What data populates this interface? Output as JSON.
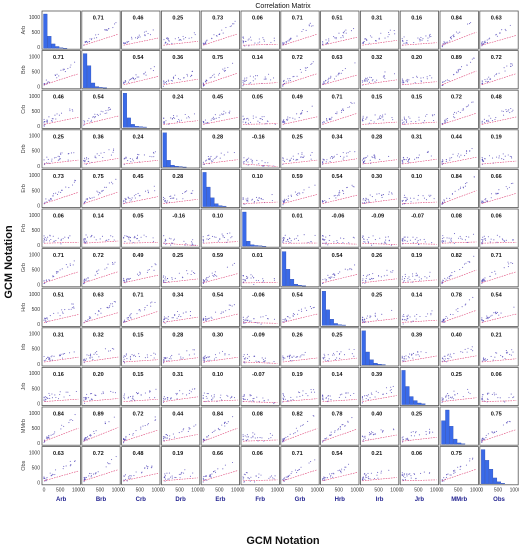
{
  "chart_data": {
    "type": "scatter-matrix",
    "title": "Correlation Matrix",
    "xlabel": "GCM Notation",
    "ylabel": "GCM Notation",
    "variables": [
      "Arb",
      "Brb",
      "Crb",
      "Drb",
      "Erb",
      "Frb",
      "Grb",
      "Hrb",
      "Irb",
      "Jrb",
      "MMrb",
      "Obs"
    ],
    "correlation_matrix": [
      [
        null,
        "0.71",
        "0.46",
        "0.25",
        "0.73",
        "0.06",
        "0.71",
        "0.51",
        "0.31",
        "0.16",
        "0.84",
        "0.63"
      ],
      [
        "0.71",
        null,
        "0.54",
        "0.36",
        "0.75",
        "0.14",
        "0.72",
        "0.63",
        "0.32",
        "0.20",
        "0.89",
        "0.72"
      ],
      [
        "0.46",
        "0.54",
        null,
        "0.24",
        "0.45",
        "0.05",
        "0.49",
        "0.71",
        "0.15",
        "0.15",
        "0.72",
        "0.48"
      ],
      [
        "0.25",
        "0.36",
        "0.24",
        null,
        "0.28",
        "-0.16",
        "0.25",
        "0.34",
        "0.28",
        "0.31",
        "0.44",
        "0.19"
      ],
      [
        "0.73",
        "0.75",
        "0.45",
        "0.28",
        null,
        "0.10",
        "0.59",
        "0.54",
        "0.30",
        "0.10",
        "0.84",
        "0.66"
      ],
      [
        "0.06",
        "0.14",
        "0.05",
        "-0.16",
        "0.10",
        null,
        "0.01",
        "-0.06",
        "-0.09",
        "-0.07",
        "0.08",
        "0.06"
      ],
      [
        "0.71",
        "0.72",
        "0.49",
        "0.25",
        "0.59",
        "0.01",
        null,
        "0.54",
        "0.26",
        "0.19",
        "0.82",
        "0.71"
      ],
      [
        "0.51",
        "0.63",
        "0.71",
        "0.34",
        "0.54",
        "-0.06",
        "0.54",
        null,
        "0.25",
        "0.14",
        "0.78",
        "0.54"
      ],
      [
        "0.31",
        "0.32",
        "0.15",
        "0.28",
        "0.30",
        "-0.09",
        "0.26",
        "0.25",
        null,
        "0.39",
        "0.40",
        "0.21"
      ],
      [
        "0.16",
        "0.20",
        "0.15",
        "0.31",
        "0.10",
        "-0.07",
        "0.19",
        "0.14",
        "0.39",
        null,
        "0.25",
        "0.06"
      ],
      [
        "0.84",
        "0.89",
        "0.72",
        "0.44",
        "0.84",
        "0.08",
        "0.82",
        "0.78",
        "0.40",
        "0.25",
        null,
        "0.75"
      ],
      [
        "0.63",
        "0.72",
        "0.48",
        "0.19",
        "0.66",
        "0.06",
        "0.71",
        "0.54",
        "0.21",
        "0.06",
        "0.75",
        null
      ]
    ],
    "histogram_counts": [
      [
        80,
        28,
        10,
        4,
        1,
        0
      ],
      [
        85,
        55,
        12,
        3,
        1,
        0
      ],
      [
        90,
        25,
        8,
        3,
        2,
        1
      ],
      [
        92,
        18,
        5,
        2,
        1,
        0
      ],
      [
        70,
        40,
        18,
        6,
        2,
        1
      ],
      [
        95,
        14,
        4,
        2,
        1,
        0
      ],
      [
        62,
        30,
        12,
        3,
        1,
        0
      ],
      [
        88,
        40,
        16,
        5,
        2,
        1
      ],
      [
        92,
        35,
        14,
        5,
        2,
        1
      ],
      [
        85,
        45,
        20,
        10,
        4,
        2
      ],
      [
        55,
        80,
        42,
        12,
        3,
        1
      ],
      [
        70,
        48,
        30,
        12,
        4,
        1
      ]
    ],
    "y_ticks": [
      "0",
      "500",
      "1000"
    ],
    "x_ticks": [
      "0",
      "500",
      "1000"
    ],
    "y_range": [
      0,
      1000
    ],
    "x_range": [
      0,
      1000
    ],
    "scatter_color": "#4a3fb5",
    "fit_line_color": "#e0487a",
    "histogram_color": "#3a6ae8",
    "histogram_edge_color": "#1f3fa8"
  }
}
